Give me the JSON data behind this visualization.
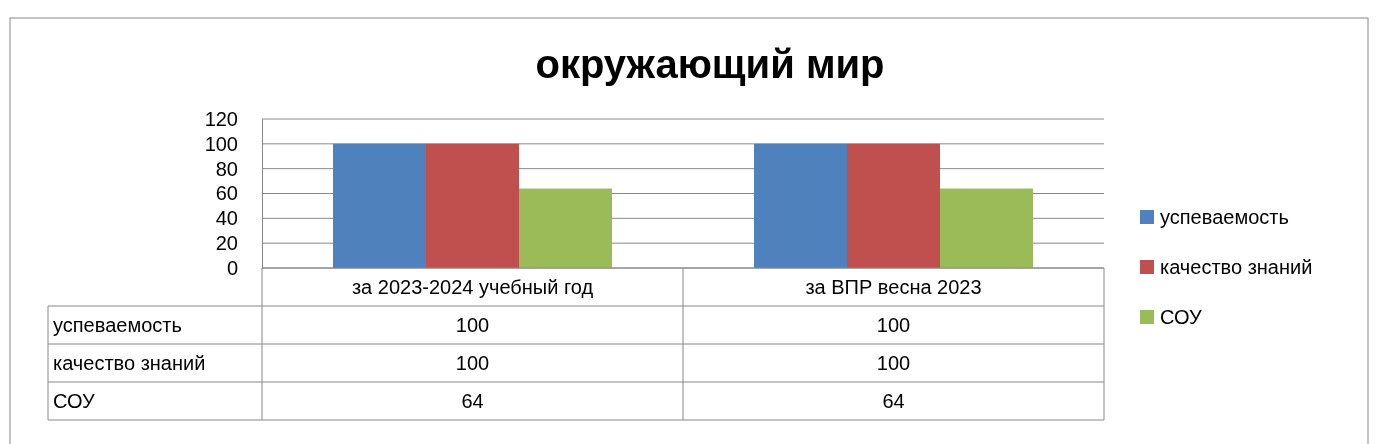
{
  "chart_data": {
    "type": "bar",
    "title": "окружающий мир",
    "categories": [
      "за 2023-2024 учебный год",
      "за ВПР весна 2023"
    ],
    "series": [
      {
        "name": "успеваемость",
        "color": "#4f81bd",
        "values": [
          100,
          100
        ]
      },
      {
        "name": "качество знаний",
        "color": "#c0504d",
        "values": [
          100,
          100
        ]
      },
      {
        "name": "СОУ",
        "color": "#9bbb59",
        "values": [
          64,
          64
        ]
      }
    ],
    "ylim": [
      0,
      120
    ],
    "yticks": [
      0,
      20,
      40,
      60,
      80,
      100,
      120
    ],
    "grid": "y",
    "legend": "right",
    "data_labels": true
  }
}
